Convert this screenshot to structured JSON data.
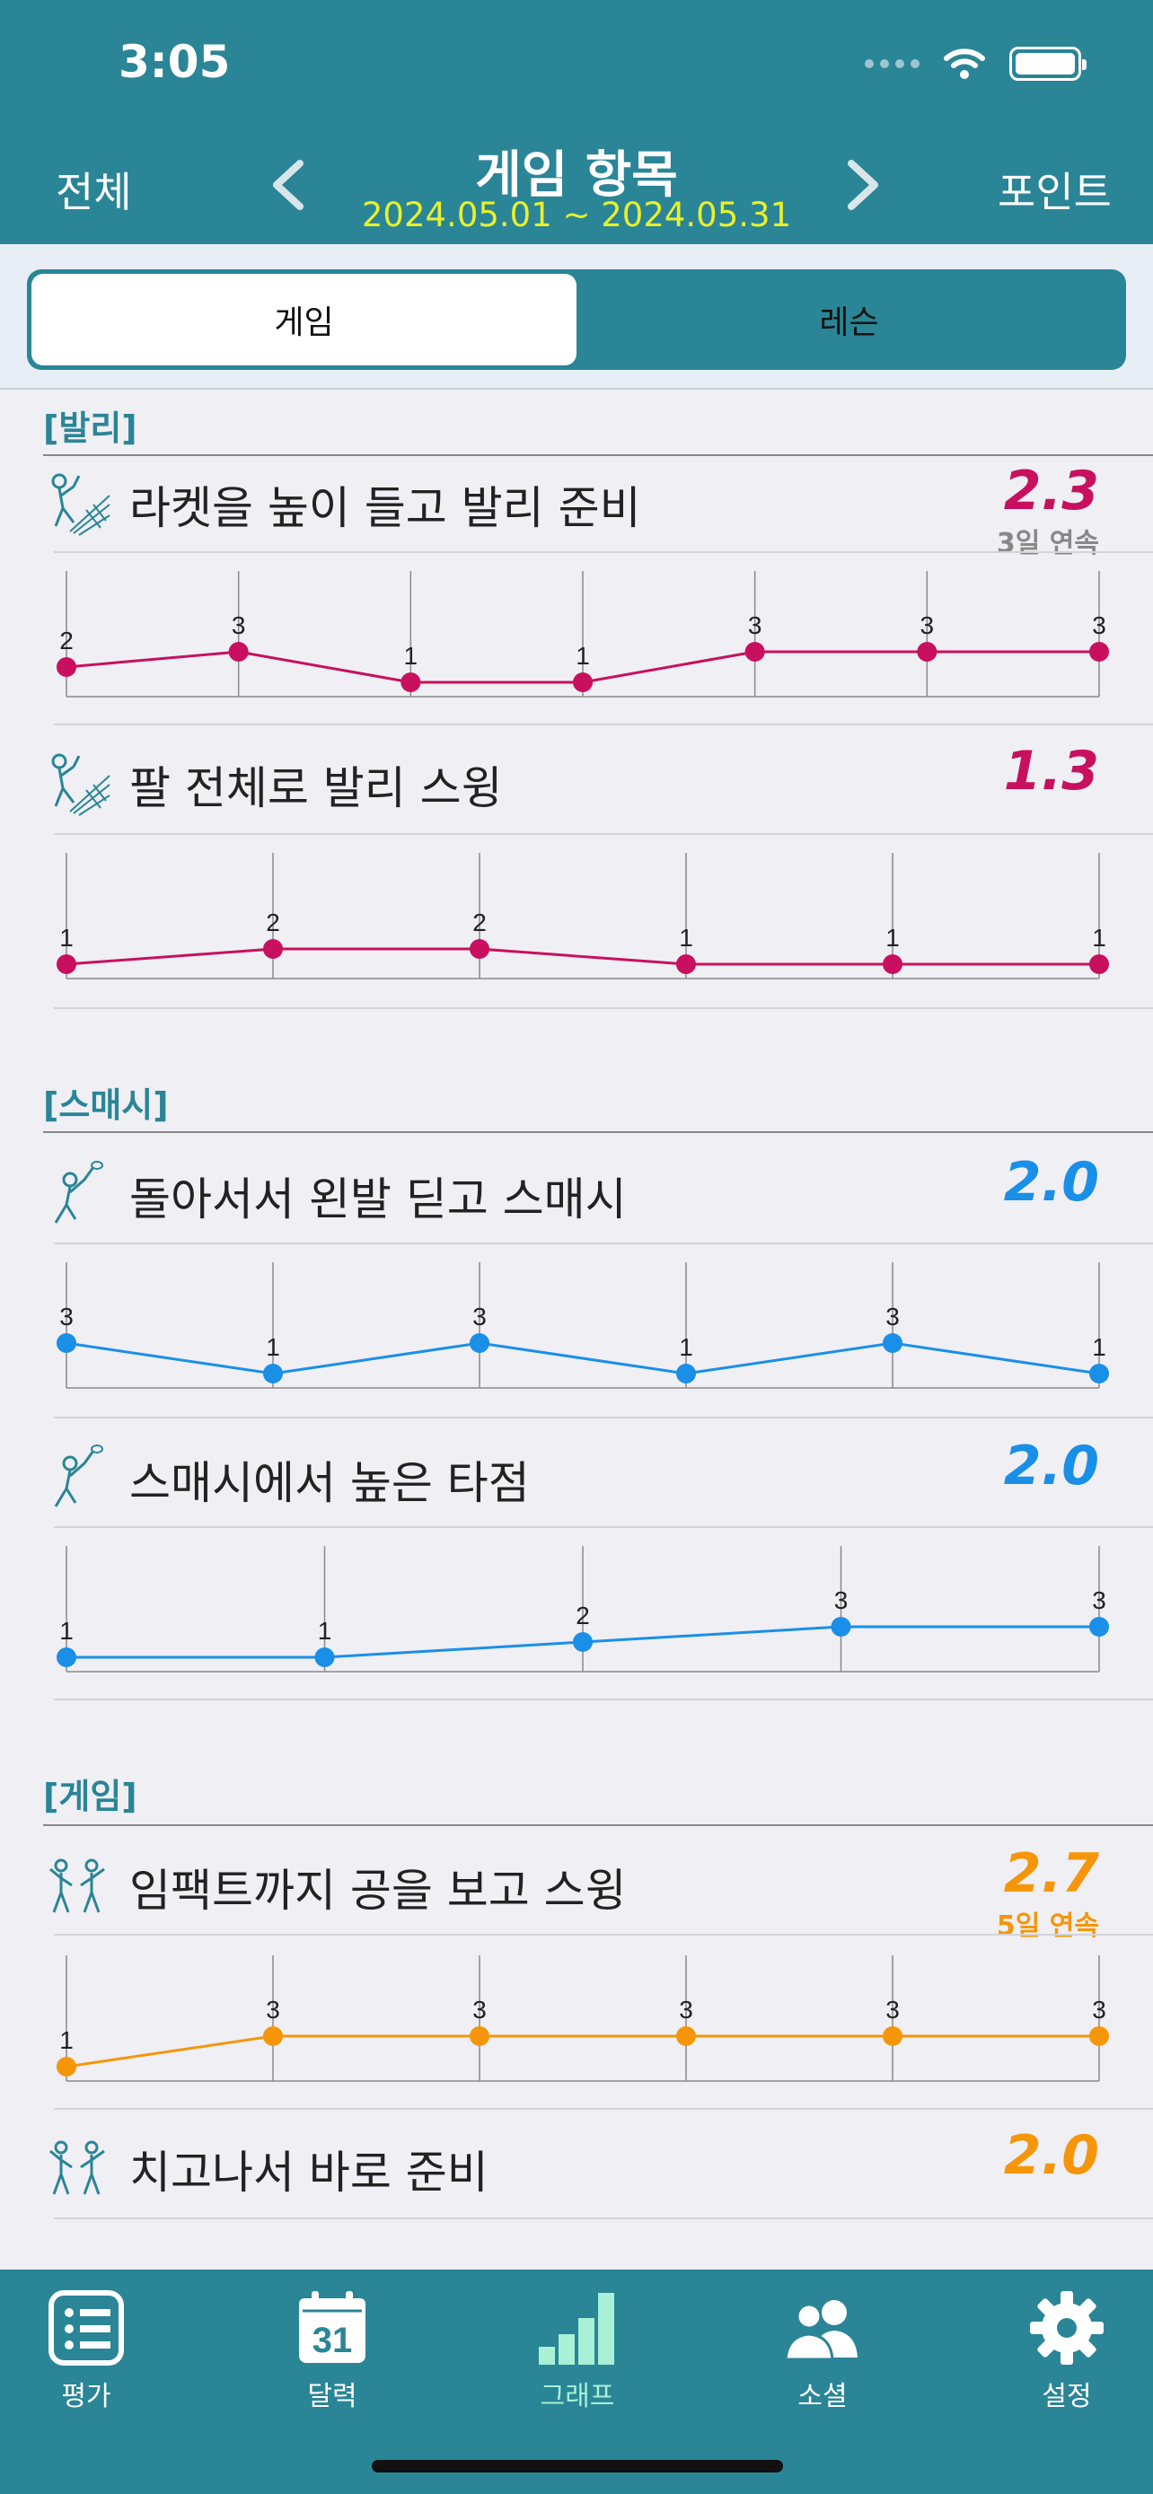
{
  "status": {
    "time": "3:05"
  },
  "nav": {
    "left": "전체",
    "title": "게임 항목",
    "subtitle": "2024.05.01 ~ 2024.05.31",
    "right": "포인트"
  },
  "segments": {
    "tabs": [
      "게임",
      "레슨"
    ],
    "active_index": 0
  },
  "sections": [
    {
      "title": "[발리]",
      "color": "#c8105e",
      "items": [
        {
          "label": "라켓을 높이 들고 발리 준비",
          "score": "2.3",
          "streak": "3일 연속",
          "values": [
            2,
            3,
            1,
            1,
            3,
            3,
            3
          ],
          "icon": "volley-player-icon"
        },
        {
          "label": "팔 전체로 발리 스윙",
          "score": "1.3",
          "streak": "",
          "values": [
            1,
            2,
            2,
            1,
            1,
            1
          ],
          "icon": "volley-player-icon"
        }
      ]
    },
    {
      "title": "[스매시]",
      "color": "#1a8fe8",
      "items": [
        {
          "label": "돌아서서 왼발 딛고 스매시",
          "score": "2.0",
          "streak": "",
          "values": [
            3,
            1,
            3,
            1,
            3,
            1
          ],
          "icon": "smash-player-icon"
        },
        {
          "label": "스매시에서 높은 타점",
          "score": "2.0",
          "streak": "",
          "values": [
            1,
            1,
            2,
            3,
            3
          ],
          "icon": "smash-player-icon"
        }
      ]
    },
    {
      "title": "[게임]",
      "color": "#f5960a",
      "items": [
        {
          "label": "임팩트까지 공을 보고 스윙",
          "score": "2.7",
          "streak": "5일 연속",
          "values": [
            1,
            3,
            3,
            3,
            3,
            3
          ],
          "icon": "doubles-players-icon"
        },
        {
          "label": "치고나서 바로 준비",
          "score": "2.0",
          "streak": "",
          "values": [],
          "icon": "doubles-players-icon"
        }
      ]
    }
  ],
  "tabbar": [
    {
      "label": "평가",
      "icon": "list-icon"
    },
    {
      "label": "달력",
      "icon": "calendar-icon",
      "badge": "31"
    },
    {
      "label": "그래프",
      "icon": "bar-graph-icon",
      "active": true
    },
    {
      "label": "소셜",
      "icon": "people-icon"
    },
    {
      "label": "설정",
      "icon": "gear-icon"
    }
  ]
}
